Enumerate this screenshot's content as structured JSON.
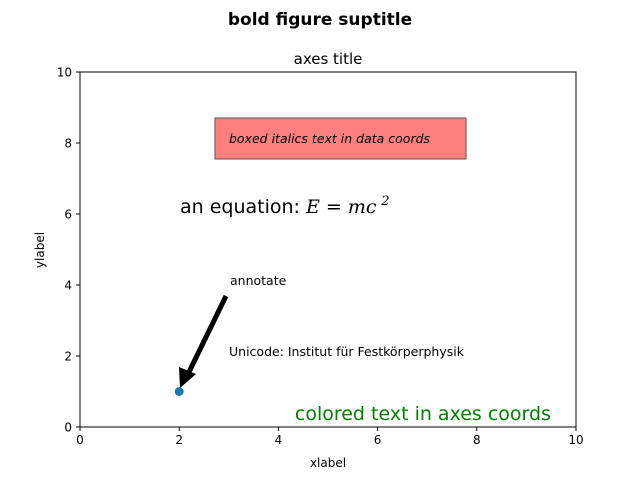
{
  "figure": {
    "suptitle": "bold figure suptitle"
  },
  "chart_data": {
    "type": "scatter",
    "title": "axes title",
    "xlabel": "xlabel",
    "ylabel": "ylabel",
    "xlim": [
      0,
      10
    ],
    "ylim": [
      0,
      10
    ],
    "xticks": [
      "0",
      "2",
      "4",
      "6",
      "8",
      "10"
    ],
    "yticks": [
      "0",
      "2",
      "4",
      "6",
      "8",
      "10"
    ],
    "grid": false,
    "points": [
      {
        "x": 2,
        "y": 1,
        "color": "#1f77b4"
      }
    ],
    "annotations": {
      "boxed": {
        "text": "boxed italics text in data coords",
        "x": 3,
        "y": 8,
        "box_color": "#ff7f7f"
      },
      "equation": {
        "prefix": "an equation: ",
        "math": "E = mc",
        "superscript": "2",
        "x": 2,
        "y": 6
      },
      "arrow": {
        "text": "annotate",
        "xy": [
          2,
          1
        ],
        "xytext": [
          3,
          4
        ]
      },
      "unicode": {
        "text": "Unicode: Institut für Festkörperphysik",
        "x": 3,
        "y": 2
      },
      "colored": {
        "text": "colored text in axes coords",
        "color": "#008000"
      }
    }
  }
}
